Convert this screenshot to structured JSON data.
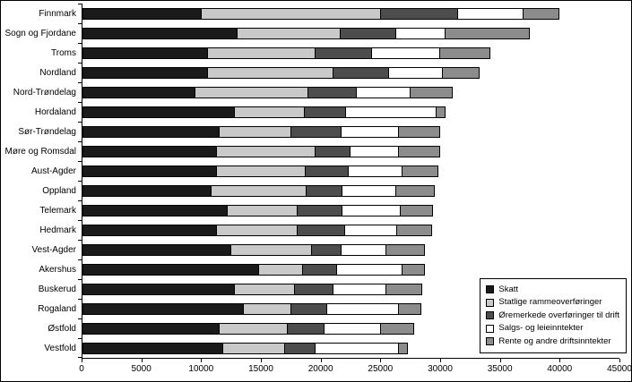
{
  "chart_data": {
    "type": "bar",
    "orientation": "horizontal",
    "stacked": true,
    "title": "",
    "xlabel": "",
    "ylabel": "",
    "xlim": [
      0,
      45000
    ],
    "x_ticks": [
      0,
      5000,
      10000,
      15000,
      20000,
      25000,
      30000,
      35000,
      40000,
      45000
    ],
    "grid": false,
    "legend_position": "bottom-right",
    "categories": [
      "Finnmark",
      "Sogn og Fjordane",
      "Troms",
      "Nordland",
      "Nord-Trøndelag",
      "Hordaland",
      "Sør-Trøndelag",
      "Møre og Romsdal",
      "Aust-Agder",
      "Oppland",
      "Telemark",
      "Hedmark",
      "Vest-Agder",
      "Akershus",
      "Buskerud",
      "Rogaland",
      "Østfold",
      "Vestfold"
    ],
    "series": [
      {
        "name": "Skatt",
        "color": "#1a1a1a",
        "values": [
          10000,
          13000,
          10500,
          10500,
          9500,
          12800,
          11500,
          11300,
          11300,
          10800,
          12200,
          11300,
          12500,
          14800,
          12800,
          13500,
          11500,
          11800
        ]
      },
      {
        "name": "Statlige rammeoverføringer",
        "color": "#c9c9c9",
        "values": [
          15000,
          8600,
          9000,
          10500,
          9400,
          5800,
          6000,
          8200,
          7400,
          8000,
          5800,
          6700,
          6700,
          3700,
          5000,
          4000,
          5700,
          5200
        ]
      },
      {
        "name": "Øremerkede overføringer til drift",
        "color": "#4d4d4d",
        "values": [
          6500,
          4700,
          4800,
          4700,
          4100,
          3500,
          4200,
          3000,
          3600,
          3000,
          3800,
          4000,
          2500,
          2800,
          3200,
          3000,
          3100,
          2500
        ]
      },
      {
        "name": "Salgs- og leieinntekter",
        "color": "#ffffff",
        "values": [
          5500,
          4100,
          5700,
          4500,
          4500,
          7600,
          4800,
          4000,
          4500,
          4500,
          4900,
          4400,
          3800,
          5500,
          4500,
          6000,
          4700,
          7000
        ]
      },
      {
        "name": "Rente og andre driftsinntekter",
        "color": "#8c8c8c",
        "values": [
          3000,
          7100,
          4200,
          3100,
          3500,
          700,
          3500,
          3500,
          3000,
          3200,
          2700,
          2900,
          3200,
          1900,
          3000,
          1900,
          2800,
          800
        ]
      }
    ]
  }
}
